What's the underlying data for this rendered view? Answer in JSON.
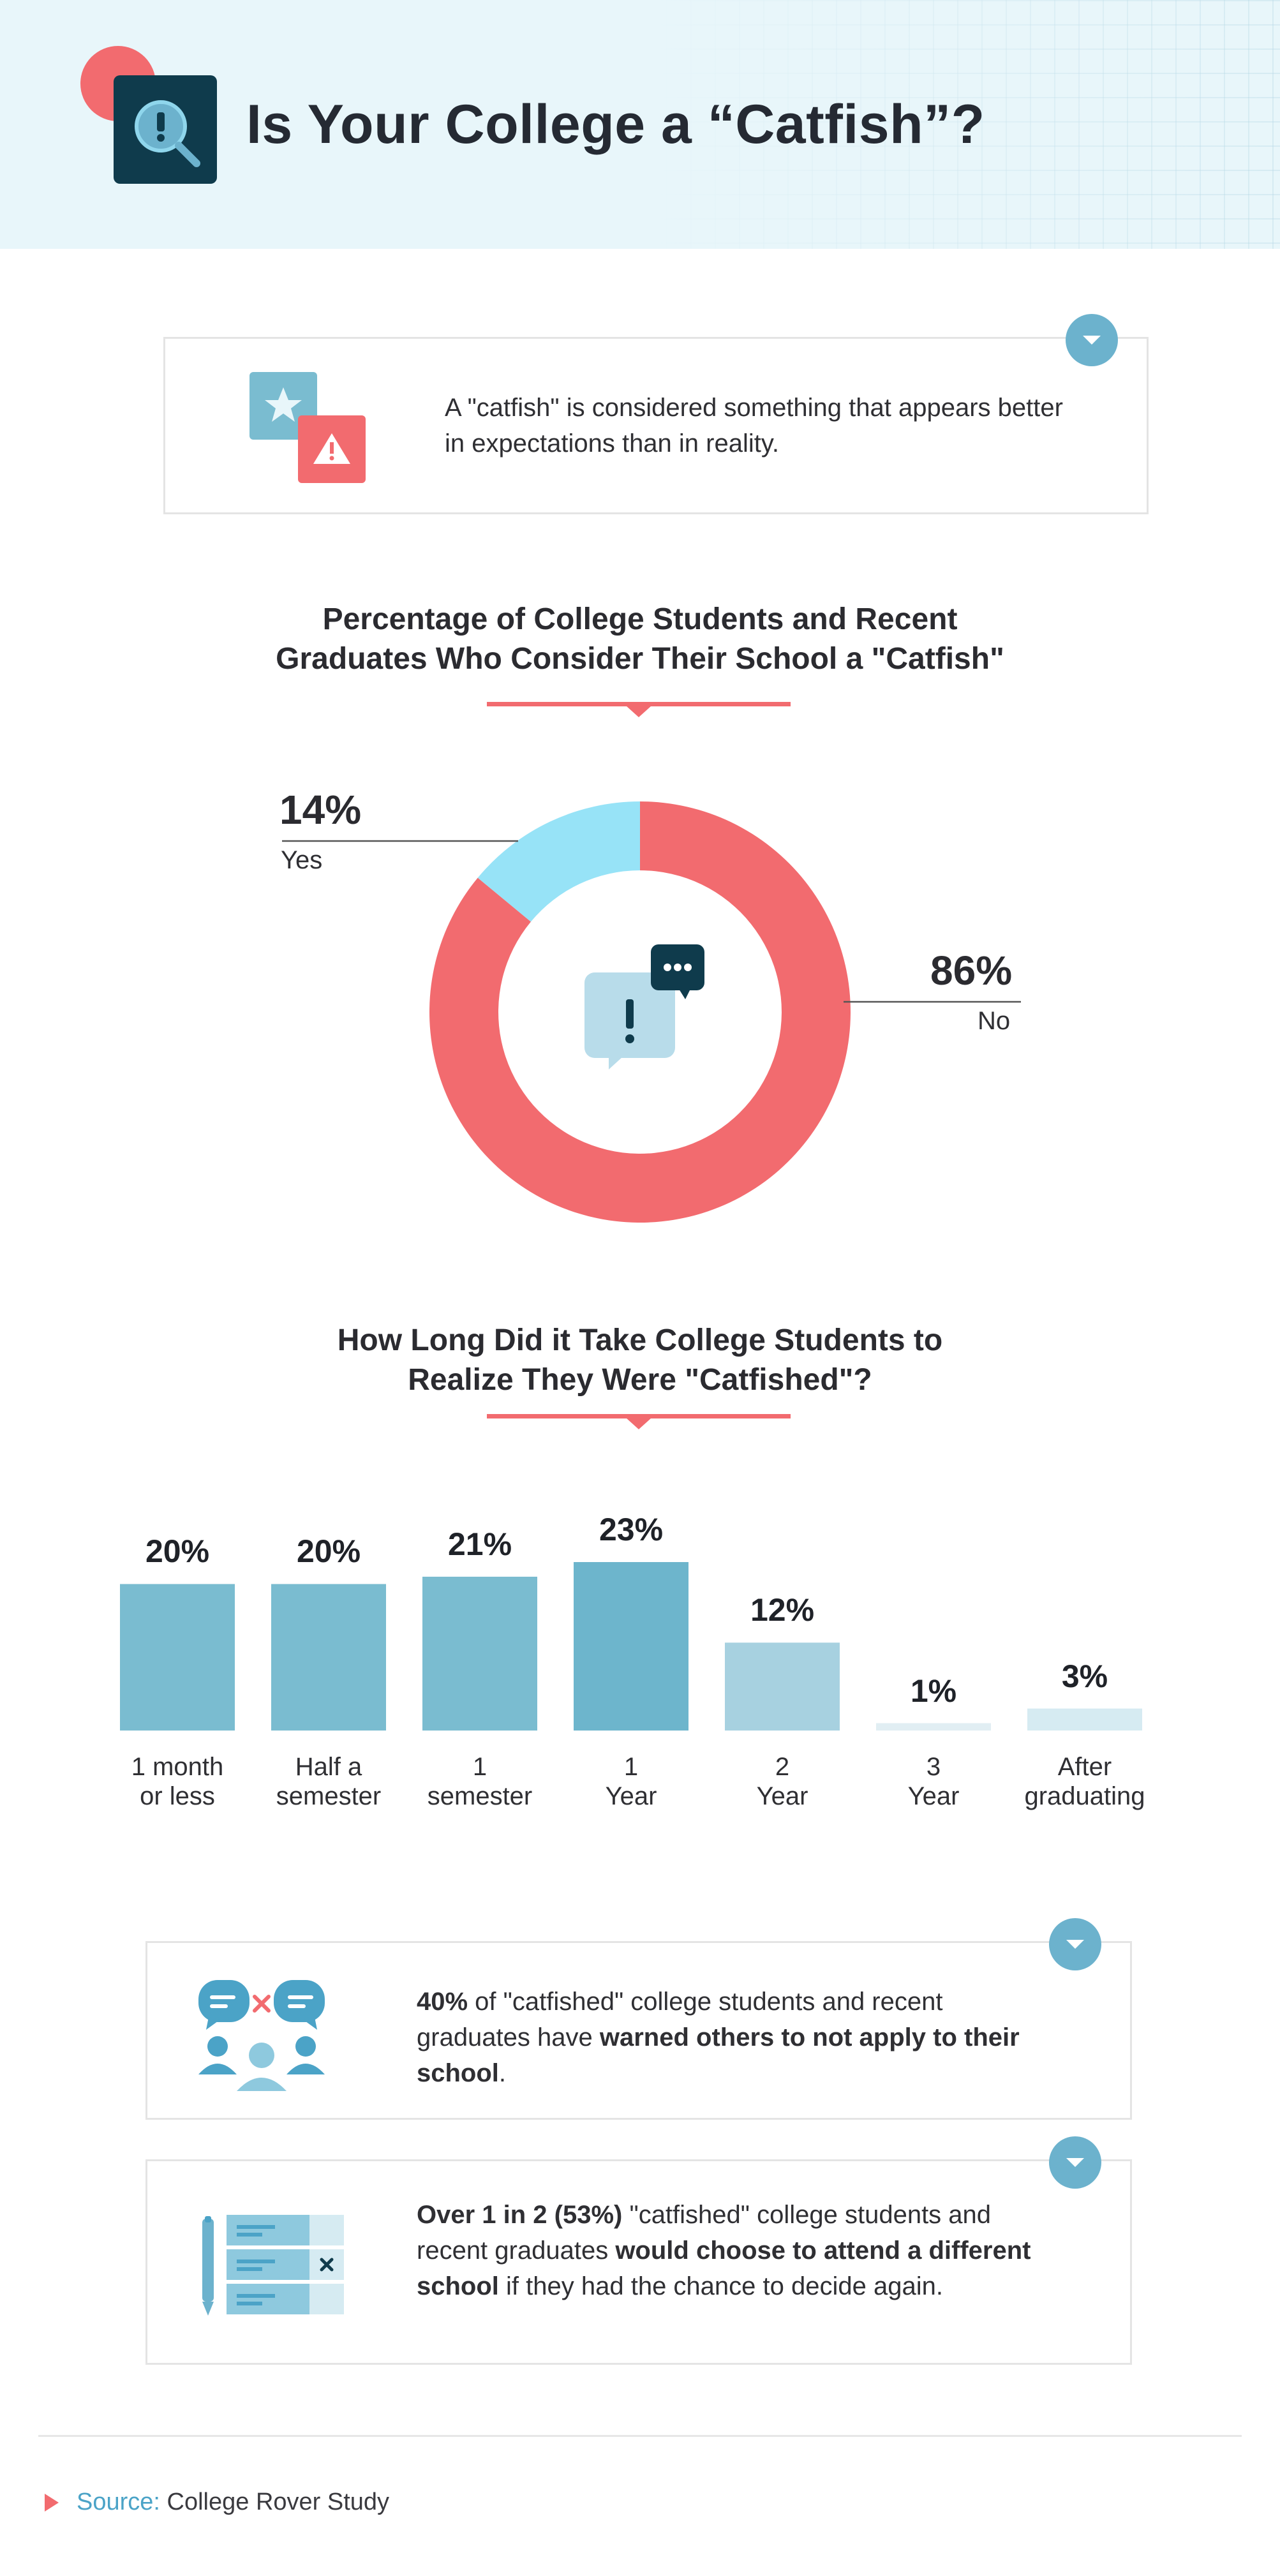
{
  "header": {
    "title": "Is Your College a “Catfish”?"
  },
  "definition": {
    "text": "A \"catfish\" is considered something that appears better in expectations than in reality."
  },
  "colors": {
    "accent_red": "#f26b6f",
    "donut_light_blue": "#97e3f7",
    "bar_blue": "#7abcd0",
    "bar_blue_dark": "#6db5cc",
    "bar_blue_light": "#a7d1e0",
    "bar_blue_faint": "#d6ebf2",
    "navy": "#0f3b4c"
  },
  "chart_data": [
    {
      "type": "pie",
      "title_line1": "Percentage of College Students and Recent",
      "title_line2": "Graduates Who Consider Their School a \"Catfish\"",
      "slices": [
        {
          "label": "Yes",
          "value": 14,
          "display": "14%",
          "color": "#97e3f7"
        },
        {
          "label": "No",
          "value": 86,
          "display": "86%",
          "color": "#f26b6f"
        }
      ]
    },
    {
      "type": "bar",
      "title_line1": "How Long Did it Take College Students to",
      "title_line2": "Realize They Were \"Catfished\"?",
      "categories": [
        [
          "1 month",
          "or less"
        ],
        [
          "Half a",
          "semester"
        ],
        [
          "1",
          "semester"
        ],
        [
          "1",
          "Year"
        ],
        [
          "2",
          "Year"
        ],
        [
          "3",
          "Year"
        ],
        [
          "After",
          "graduating"
        ]
      ],
      "values": [
        20,
        20,
        21,
        23,
        12,
        1,
        3
      ],
      "value_labels": [
        "20%",
        "20%",
        "21%",
        "23%",
        "12%",
        "1%",
        "3%"
      ],
      "bar_colors": [
        "#7abcd0",
        "#7abcd0",
        "#7abcd0",
        "#6db5cc",
        "#a7d1e0",
        "#e1eef3",
        "#d6ebf2"
      ],
      "ylim": [
        0,
        23
      ]
    }
  ],
  "stat1": {
    "bold1": "40%",
    "text1": " of \"catfished\" college students and recent graduates have ",
    "bold2": "warned others to not apply to their school",
    "text2": "."
  },
  "stat2": {
    "bold1": "Over 1 in 2 (53%)",
    "text1": " \"catfished\" college students and recent graduates ",
    "bold2": "would choose to attend a different school",
    "text2": " if they had the chance to decide again."
  },
  "source": {
    "label": "Source:",
    "value": "College Rover Study"
  }
}
